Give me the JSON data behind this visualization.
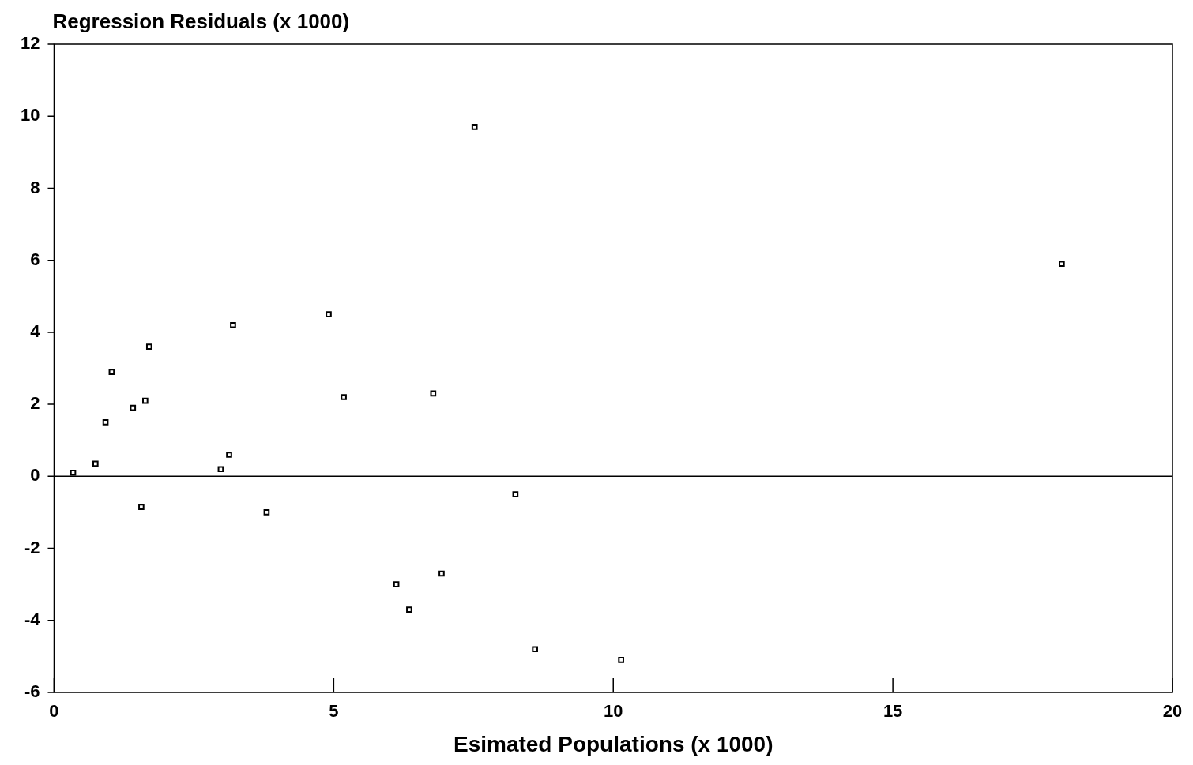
{
  "chart_data": {
    "type": "scatter",
    "xlabel": "Esimated Populations (x 1000)",
    "ylabel": "Regression Residuals (x 1000)",
    "x": [
      0.34,
      0.74,
      0.92,
      1.03,
      1.41,
      1.56,
      1.63,
      1.7,
      2.98,
      3.13,
      3.2,
      3.8,
      4.91,
      5.18,
      6.12,
      6.35,
      6.78,
      6.93,
      7.52,
      8.25,
      8.6,
      10.14,
      18.02
    ],
    "series": [
      {
        "color": "#000000",
        "values": [
          0.1,
          0.35,
          1.5,
          2.9,
          1.9,
          -0.85,
          2.1,
          3.6,
          0.2,
          0.6,
          4.2,
          -1.0,
          4.5,
          2.2,
          -3.0,
          -3.7,
          2.3,
          -2.7,
          9.7,
          -0.5,
          -4.8,
          -5.1,
          5.9
        ]
      }
    ],
    "xlim": [
      0,
      20
    ],
    "xticks": [
      0,
      5,
      10,
      15,
      20
    ],
    "ylim": [
      -6,
      12
    ],
    "yticks": [
      -6,
      -4,
      -2,
      0,
      2,
      4,
      6,
      8,
      10,
      12
    ],
    "ref_lines": [
      {
        "axis": "y",
        "value": 0,
        "color": "#000000"
      }
    ],
    "marker": "square",
    "grid": false,
    "legend": false
  }
}
